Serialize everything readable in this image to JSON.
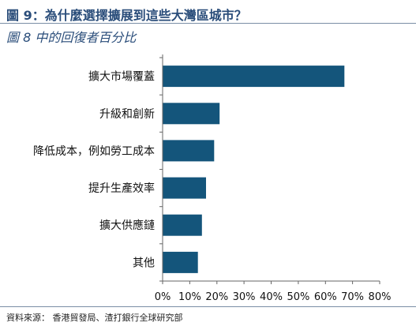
{
  "header": {
    "title": "圖 9：為什麼選擇擴展到這些大灣區城市？",
    "subtitle": "圖 8 中的回復者百分比"
  },
  "footer": {
    "source": "資料來源： 香港貿發局、渣打銀行全球研究部"
  },
  "colors": {
    "bar": "#14557b",
    "title": "#2a4d7a",
    "axis": "#666666"
  },
  "chart_data": {
    "type": "bar",
    "orientation": "horizontal",
    "categories": [
      "擴大市場覆蓋",
      "升級和創新",
      "降低成本，例如勞工成本",
      "提升生產效率",
      "擴大供應鏈",
      "其他"
    ],
    "values": [
      67,
      21,
      19,
      16,
      14.5,
      13
    ],
    "title": "圖 9：為什麼選擇擴展到這些大灣區城市？",
    "subtitle": "圖 8 中的回復者百分比",
    "xlabel": "",
    "ylabel": "",
    "xlim": [
      0,
      80
    ],
    "xticks": [
      0,
      10,
      20,
      30,
      40,
      50,
      60,
      70,
      80
    ],
    "xtick_labels": [
      "0%",
      "10%",
      "20%",
      "30%",
      "40%",
      "50%",
      "60%",
      "70%",
      "80%"
    ],
    "grid": false,
    "legend": "none"
  }
}
